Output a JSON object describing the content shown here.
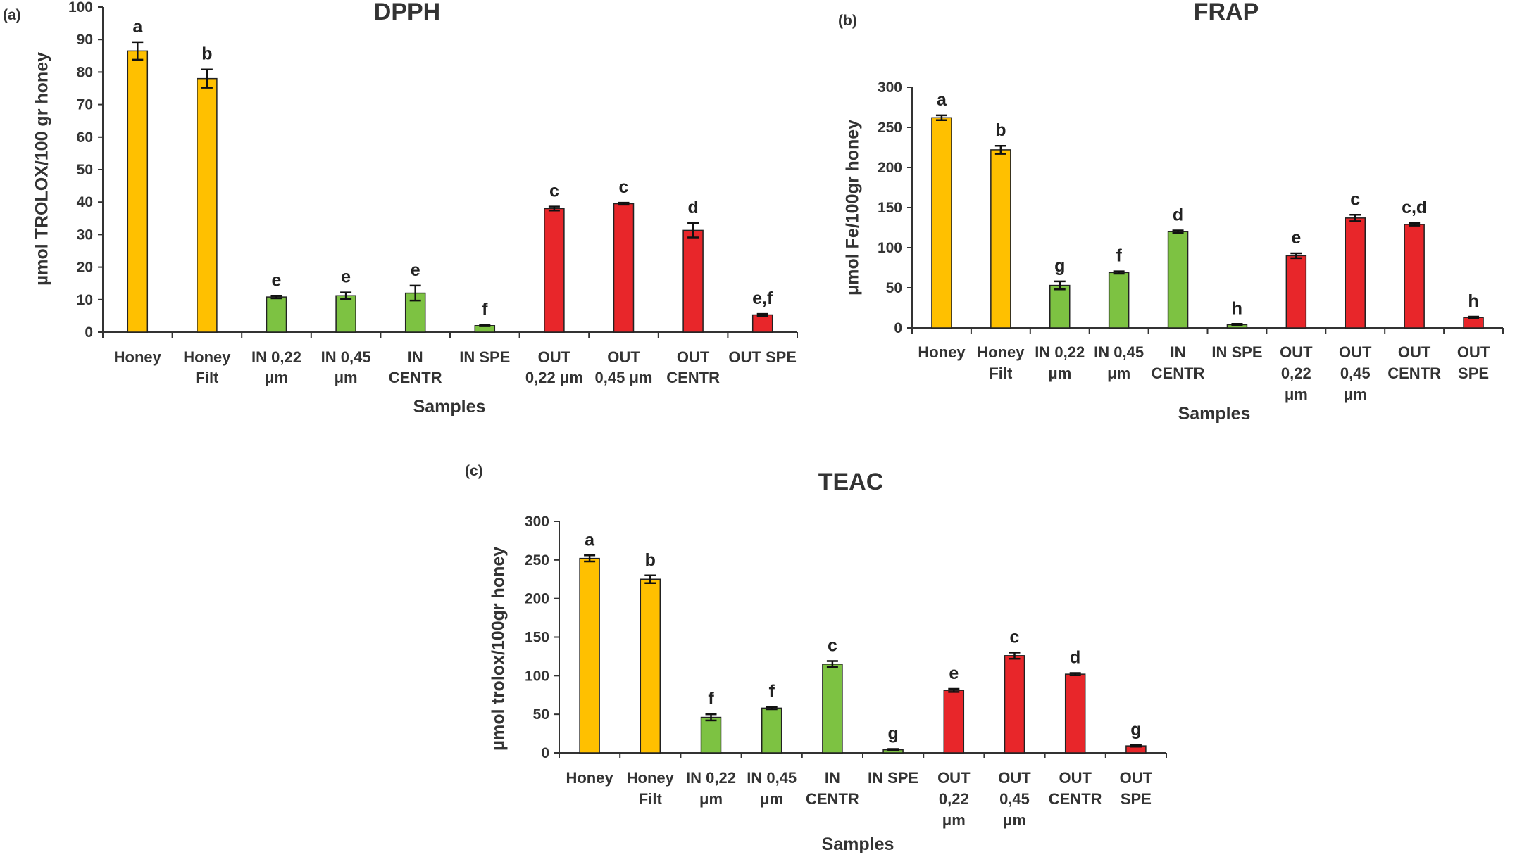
{
  "colors": {
    "honey": "#FFC000",
    "in": "#7DC242",
    "out": "#E8262A",
    "errorbar": "#111111"
  },
  "chart_data": [
    {
      "type": "bar",
      "panel_label": "(a)",
      "title": "DPPH",
      "xlabel": "Samples",
      "ylabel": "μmol TROLOX/100 gr honey",
      "ylim": [
        0,
        100
      ],
      "yticks": [
        0,
        10,
        20,
        30,
        40,
        50,
        60,
        70,
        80,
        90,
        100
      ],
      "categories": [
        "Honey",
        "Honey Filt",
        "IN 0,22 μm",
        "IN 0,45 μm",
        "IN CENTR",
        "IN SPE",
        "OUT 0,22 μm",
        "OUT 0,45 μm",
        "OUT CENTR",
        "OUT SPE"
      ],
      "category_lines": [
        [
          "Honey"
        ],
        [
          "Honey",
          "Filt"
        ],
        [
          "IN 0,22",
          "μm"
        ],
        [
          "IN 0,45",
          "μm"
        ],
        [
          "IN",
          "CENTR"
        ],
        [
          "IN SPE"
        ],
        [
          "OUT",
          "0,22 μm"
        ],
        [
          "OUT",
          "0,45 μm"
        ],
        [
          "OUT",
          "CENTR"
        ],
        [
          "OUT SPE"
        ]
      ],
      "groups": [
        "honey",
        "honey",
        "in",
        "in",
        "in",
        "in",
        "out",
        "out",
        "out",
        "out"
      ],
      "values": [
        86.5,
        78,
        10.8,
        11.2,
        12,
        2,
        38,
        39.5,
        31.3,
        5.3
      ],
      "errors": [
        2.7,
        2.8,
        0.4,
        1,
        2.3,
        0.2,
        0.6,
        0.3,
        2.2,
        0.3
      ],
      "letters": [
        "a",
        "b",
        "e",
        "e",
        "e",
        "f",
        "c",
        "c",
        "d",
        "e,f"
      ]
    },
    {
      "type": "bar",
      "panel_label": "(b)",
      "title": "FRAP",
      "xlabel": "Samples",
      "ylabel": "μmol Fe/100gr honey",
      "ylim": [
        0,
        300
      ],
      "yticks": [
        0,
        50,
        100,
        150,
        200,
        250,
        300
      ],
      "categories": [
        "Honey",
        "Honey Filt",
        "IN 0,22 μm",
        "IN 0,45 μm",
        "IN CENTR",
        "IN SPE",
        "OUT 0,22 μm",
        "OUT 0,45 μm",
        "OUT CENTR",
        "OUT SPE"
      ],
      "category_lines": [
        [
          "Honey"
        ],
        [
          "Honey",
          "Filt"
        ],
        [
          "IN 0,22",
          "μm"
        ],
        [
          "IN 0,45",
          "μm"
        ],
        [
          "IN",
          "CENTR"
        ],
        [
          "IN SPE"
        ],
        [
          "OUT",
          "0,22",
          "μm"
        ],
        [
          "OUT",
          "0,45",
          "μm"
        ],
        [
          "OUT",
          "CENTR"
        ],
        [
          "OUT",
          "SPE"
        ]
      ],
      "groups": [
        "honey",
        "honey",
        "in",
        "in",
        "in",
        "in",
        "out",
        "out",
        "out",
        "out"
      ],
      "values": [
        262,
        222,
        53,
        69,
        120,
        4,
        90,
        137,
        129,
        13
      ],
      "errors": [
        3,
        5,
        5,
        1.5,
        1.5,
        1,
        3,
        4,
        1.5,
        1
      ],
      "letters": [
        "a",
        "b",
        "g",
        "f",
        "d",
        "h",
        "e",
        "c",
        "c,d",
        "h"
      ]
    },
    {
      "type": "bar",
      "panel_label": "(c)",
      "title": "TEAC",
      "xlabel": "Samples",
      "ylabel": "μmol trolox/100gr honey",
      "ylim": [
        0,
        300
      ],
      "yticks": [
        0,
        50,
        100,
        150,
        200,
        250,
        300
      ],
      "categories": [
        "Honey",
        "Honey Filt",
        "IN 0,22 μm",
        "IN 0,45 μm",
        "IN CENTR",
        "IN SPE",
        "OUT 0,22 μm",
        "OUT 0,45 μm",
        "OUT CENTR",
        "OUT SPE"
      ],
      "category_lines": [
        [
          "Honey"
        ],
        [
          "Honey",
          "Filt"
        ],
        [
          "IN 0,22",
          "μm"
        ],
        [
          "IN 0,45",
          "μm"
        ],
        [
          "IN",
          "CENTR"
        ],
        [
          "IN SPE"
        ],
        [
          "OUT",
          "0,22",
          "μm"
        ],
        [
          "OUT",
          "0,45",
          "μm"
        ],
        [
          "OUT",
          "CENTR"
        ],
        [
          "OUT",
          "SPE"
        ]
      ],
      "groups": [
        "honey",
        "honey",
        "in",
        "in",
        "in",
        "in",
        "out",
        "out",
        "out",
        "out"
      ],
      "values": [
        252,
        225,
        46,
        58,
        115,
        4,
        81,
        126,
        102,
        9
      ],
      "errors": [
        4,
        5,
        4,
        1.5,
        4,
        1,
        2,
        4,
        1.5,
        1
      ],
      "letters": [
        "a",
        "b",
        "f",
        "f",
        "c",
        "g",
        "e",
        "c",
        "d",
        "g"
      ]
    }
  ]
}
